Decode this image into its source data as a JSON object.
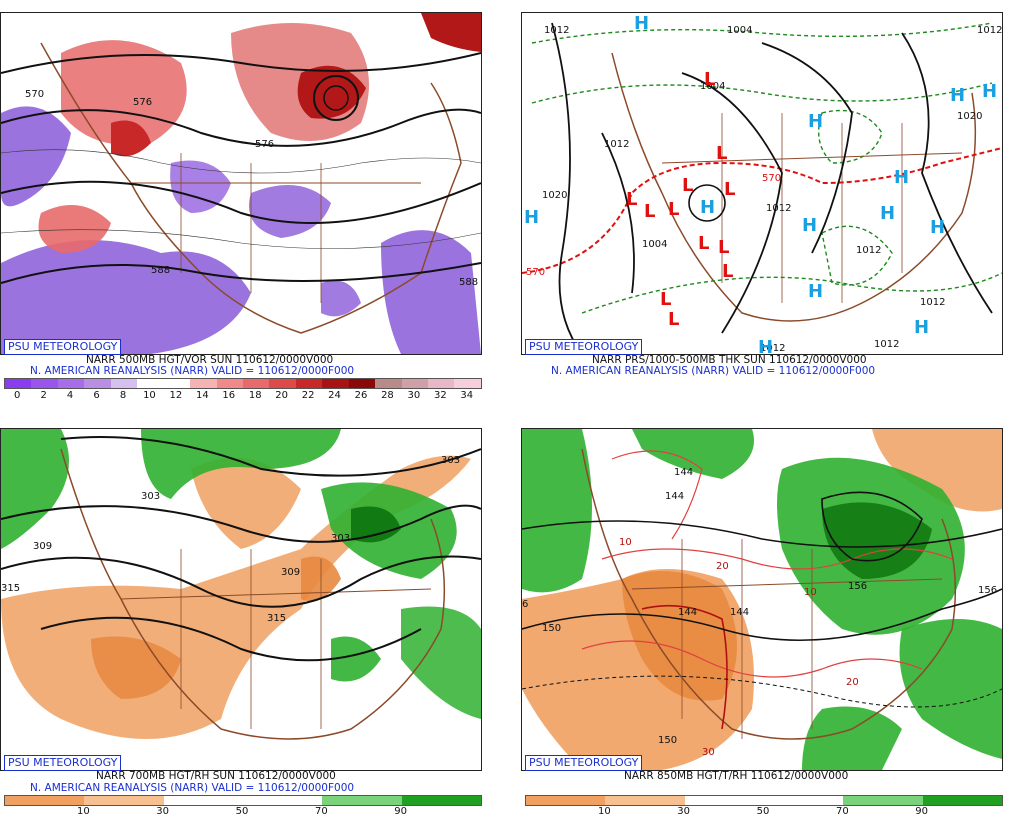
{
  "logo_text": "PSU METEOROLOGY",
  "panels": {
    "top_left": {
      "title": "NARR 500MB HGT/VOR SUN 110612/0000V000",
      "subtitle": "N. AMERICAN REANALYSIS (NARR) VALID = 110612/0000F000",
      "contour_labels": [
        "570",
        "576",
        "576",
        "588",
        "588"
      ],
      "colorbar": {
        "ticks": [
          "0",
          "2",
          "4",
          "6",
          "8",
          "10",
          "12",
          "14",
          "16",
          "18",
          "20",
          "22",
          "24",
          "26",
          "28",
          "30",
          "32",
          "34"
        ],
        "colors": [
          "#8a3df0",
          "#9a55ee",
          "#a86de8",
          "#b98fe6",
          "#d6c0f0",
          "#ffffff",
          "#ffffff",
          "#f5b3b3",
          "#f08a8a",
          "#e86a6a",
          "#dc4a4a",
          "#c82828",
          "#a81414",
          "#8a0808",
          "#b88a8a",
          "#d0a0a8",
          "#e8b8c8",
          "#f5d0dc"
        ]
      }
    },
    "top_right": {
      "title": "NARR PRS/1000-500MB THK SUN 110612/0000V000",
      "subtitle": "N. AMERICAN REANALYSIS (NARR) VALID = 110612/0000F000",
      "high_symbol": "H",
      "low_symbol": "L",
      "contour_labels": [
        "1012",
        "1004",
        "1012",
        "1020",
        "1004",
        "1004",
        "1012",
        "1012",
        "1012",
        "1020",
        "1012",
        "1012",
        "570",
        "570",
        "1012"
      ]
    },
    "bottom_left": {
      "title": "NARR 700MB HGT/RH SUN 110612/0000V000",
      "subtitle": "N. AMERICAN REANALYSIS (NARR) VALID = 110612/0000F000",
      "contour_labels": [
        "303",
        "303",
        "309",
        "315",
        "309",
        "315",
        "303"
      ],
      "colorbar": {
        "ticks": [
          "10",
          "30",
          "50",
          "70",
          "90"
        ],
        "colors": [
          "#f0a060",
          "#f6c090",
          "#ffffff",
          "#ffffff",
          "#7ad27a",
          "#20a020"
        ]
      }
    },
    "bottom_right": {
      "title": "NARR 850MB HGT/T/RH 110612/0000V000",
      "contour_labels": [
        "144",
        "144",
        "10",
        "20",
        "10",
        "150",
        "144",
        "144",
        "156",
        "156",
        "150",
        "30",
        "20",
        "6"
      ],
      "colorbar": {
        "ticks": [
          "10",
          "30",
          "50",
          "70",
          "90"
        ],
        "colors": [
          "#f0a060",
          "#f6c090",
          "#ffffff",
          "#ffffff",
          "#7ad27a",
          "#20a020"
        ]
      }
    }
  }
}
